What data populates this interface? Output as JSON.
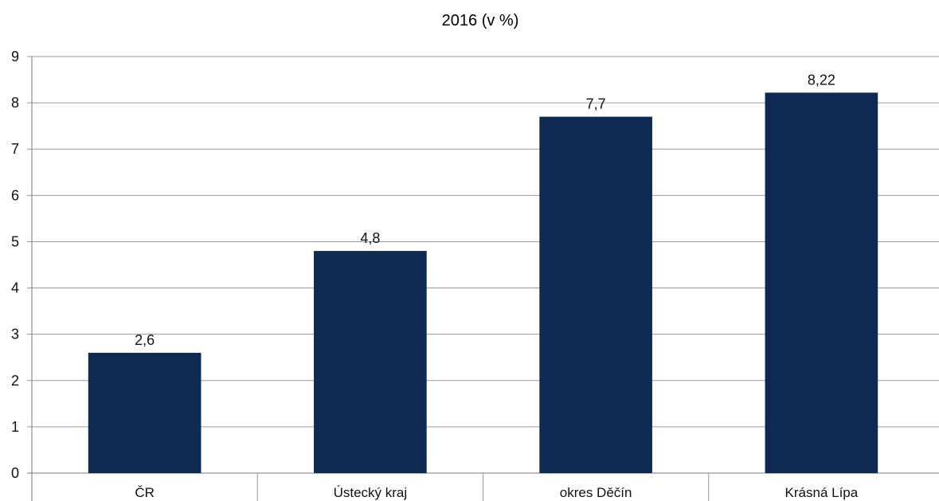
{
  "chart_data": {
    "type": "bar",
    "title": "2016 (v %)",
    "categories": [
      "ČR",
      "Ústecký kraj",
      "okres Děčín",
      "Krásná Lípa"
    ],
    "values": [
      2.6,
      4.8,
      7.7,
      8.22
    ],
    "data_labels": [
      "2,6",
      "4,8",
      "7,7",
      "8,22"
    ],
    "ylim": [
      0,
      9
    ],
    "yticks": [
      0,
      1,
      2,
      3,
      4,
      5,
      6,
      7,
      8,
      9
    ],
    "grid": true,
    "bar_color": "#0f2a52"
  }
}
